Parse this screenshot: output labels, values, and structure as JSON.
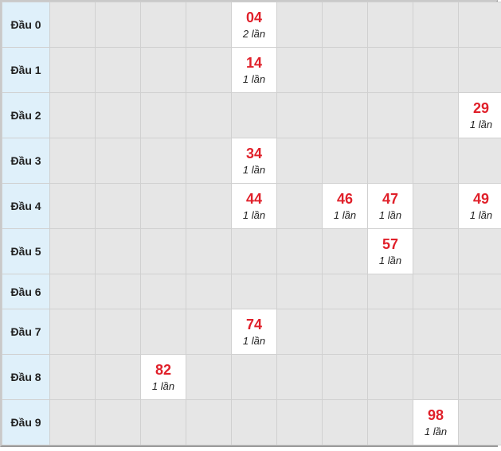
{
  "rows": [
    {
      "label": "Đầu 0",
      "cells": [
        null,
        null,
        null,
        null,
        {
          "num": "04",
          "count": "2 lần"
        },
        null,
        null,
        null,
        null,
        null
      ]
    },
    {
      "label": "Đầu 1",
      "cells": [
        null,
        null,
        null,
        null,
        {
          "num": "14",
          "count": "1 lần"
        },
        null,
        null,
        null,
        null,
        null
      ]
    },
    {
      "label": "Đầu 2",
      "cells": [
        null,
        null,
        null,
        null,
        null,
        null,
        null,
        null,
        null,
        {
          "num": "29",
          "count": "1 lần"
        }
      ]
    },
    {
      "label": "Đầu 3",
      "cells": [
        null,
        null,
        null,
        null,
        {
          "num": "34",
          "count": "1 lần"
        },
        null,
        null,
        null,
        null,
        null
      ]
    },
    {
      "label": "Đầu 4",
      "cells": [
        null,
        null,
        null,
        null,
        {
          "num": "44",
          "count": "1 lần"
        },
        null,
        {
          "num": "46",
          "count": "1 lần"
        },
        {
          "num": "47",
          "count": "1 lần"
        },
        null,
        {
          "num": "49",
          "count": "1 lần"
        }
      ]
    },
    {
      "label": "Đầu 5",
      "cells": [
        null,
        null,
        null,
        null,
        null,
        null,
        null,
        {
          "num": "57",
          "count": "1 lần"
        },
        null,
        null
      ]
    },
    {
      "label": "Đầu 6",
      "cells": [
        null,
        null,
        null,
        null,
        null,
        null,
        null,
        null,
        null,
        null
      ]
    },
    {
      "label": "Đầu 7",
      "cells": [
        null,
        null,
        null,
        null,
        {
          "num": "74",
          "count": "1 lần"
        },
        null,
        null,
        null,
        null,
        null
      ]
    },
    {
      "label": "Đầu 8",
      "cells": [
        null,
        null,
        {
          "num": "82",
          "count": "1 lần"
        },
        null,
        null,
        null,
        null,
        null,
        null,
        null
      ]
    },
    {
      "label": "Đầu 9",
      "cells": [
        null,
        null,
        null,
        null,
        null,
        null,
        null,
        null,
        {
          "num": "98",
          "count": "1 lần"
        },
        null
      ]
    }
  ],
  "colors": {
    "number": "#e0202a",
    "header_bg": "#dff0fa",
    "cell_bg": "#e6e6e6",
    "hit_bg": "#ffffff"
  }
}
